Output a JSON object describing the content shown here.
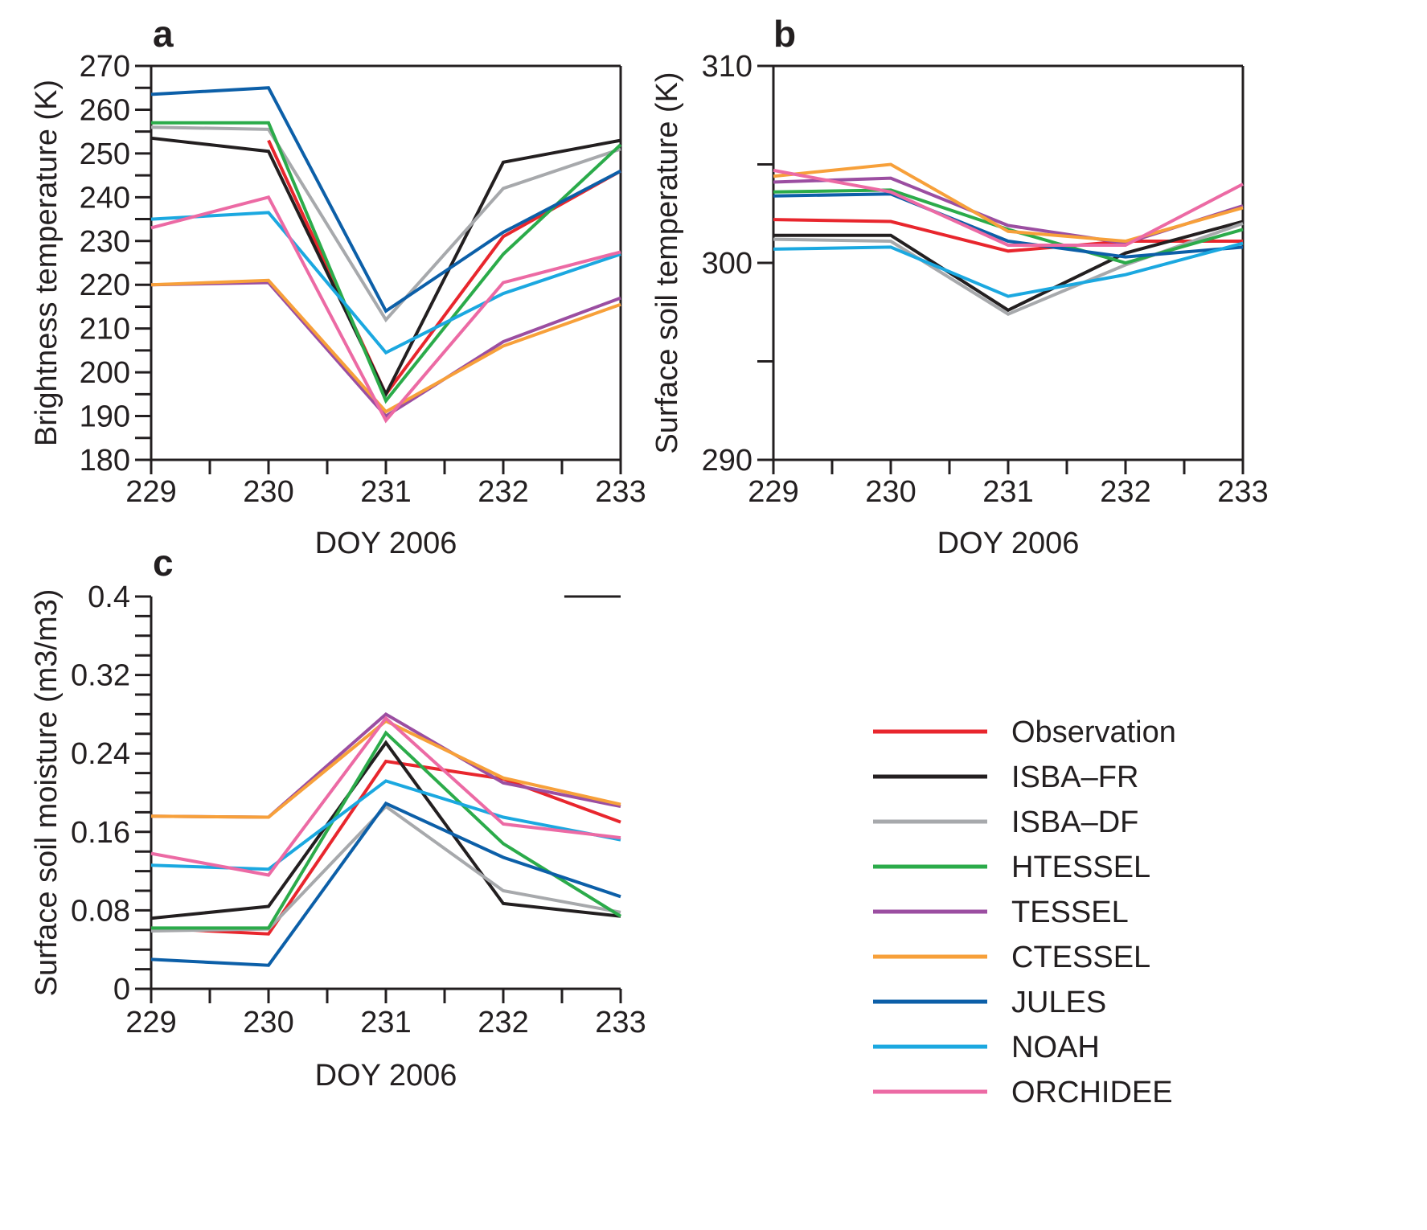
{
  "chart_data": [
    {
      "panel": "a",
      "type": "line",
      "x": [
        229,
        230,
        231,
        232,
        233
      ],
      "xlabel": "DOY 2006",
      "ylabel": "Brightness temperature (K)",
      "xlim": [
        229,
        233
      ],
      "ylim": [
        180,
        270
      ],
      "yticks": [
        180,
        190,
        200,
        210,
        220,
        230,
        240,
        250,
        260,
        270
      ],
      "ytick_step_minor": 5,
      "grid": false,
      "series": [
        {
          "name": "Observation",
          "color": "#e8262d",
          "x": [
            230,
            231,
            232,
            233
          ],
          "values": [
            253,
            195,
            231,
            246
          ]
        },
        {
          "name": "ISBA–FR",
          "color": "#231f20",
          "x": [
            229,
            230,
            231,
            232,
            233
          ],
          "values": [
            253.5,
            250.5,
            195,
            248,
            253
          ]
        },
        {
          "name": "ISBA–DF",
          "color": "#a7a9ac",
          "x": [
            229,
            230,
            231,
            232,
            233
          ],
          "values": [
            256,
            255.5,
            212,
            242,
            251
          ]
        },
        {
          "name": "HTESSEL",
          "color": "#2bab4a",
          "x": [
            229,
            230,
            231,
            232,
            233
          ],
          "values": [
            257,
            257,
            193.5,
            227,
            252
          ]
        },
        {
          "name": "TESSEL",
          "color": "#9b4ea1",
          "x": [
            229,
            230,
            231,
            232,
            233
          ],
          "values": [
            220,
            220.5,
            190,
            207,
            217
          ]
        },
        {
          "name": "CTESSEL",
          "color": "#f7a03a",
          "x": [
            229,
            230,
            231,
            232,
            233
          ],
          "values": [
            220,
            221,
            191,
            206,
            215.5
          ]
        },
        {
          "name": "JULES",
          "color": "#0c5fa8",
          "x": [
            229,
            230,
            231,
            232,
            233
          ],
          "values": [
            263.5,
            265,
            214,
            232,
            246
          ]
        },
        {
          "name": "NOAH",
          "color": "#1ba8e0",
          "x": [
            229,
            230,
            231,
            232,
            233
          ],
          "values": [
            235,
            236.5,
            204.5,
            218,
            227
          ]
        },
        {
          "name": "ORCHIDEE",
          "color": "#ec6aa4",
          "x": [
            229,
            230,
            231,
            232,
            233
          ],
          "values": [
            233,
            240,
            189,
            220.5,
            227.5
          ]
        }
      ]
    },
    {
      "panel": "b",
      "type": "line",
      "x": [
        229,
        230,
        231,
        232,
        233
      ],
      "xlabel": "DOY 2006",
      "ylabel": "Surface soil temperature (K)",
      "xlim": [
        229,
        233
      ],
      "ylim": [
        290,
        310
      ],
      "yticks": [
        290,
        300,
        310
      ],
      "ytick_step_minor": 5,
      "grid": false,
      "series": [
        {
          "name": "Observation",
          "color": "#e8262d",
          "x": [
            229,
            230,
            231,
            232,
            233
          ],
          "values": [
            302.2,
            302.1,
            300.6,
            301.1,
            301.1
          ]
        },
        {
          "name": "ISBA–FR",
          "color": "#231f20",
          "x": [
            229,
            230,
            231,
            232,
            233
          ],
          "values": [
            301.4,
            301.4,
            297.6,
            300.5,
            302.1
          ]
        },
        {
          "name": "ISBA–DF",
          "color": "#a7a9ac",
          "x": [
            229,
            230,
            231,
            232,
            233
          ],
          "values": [
            301.2,
            301.1,
            297.4,
            299.9,
            302.0
          ]
        },
        {
          "name": "HTESSEL",
          "color": "#2bab4a",
          "x": [
            229,
            230,
            231,
            232,
            233
          ],
          "values": [
            303.6,
            303.7,
            301.7,
            300.0,
            301.7
          ]
        },
        {
          "name": "TESSEL",
          "color": "#9b4ea1",
          "x": [
            229,
            230,
            231,
            232,
            233
          ],
          "values": [
            304.1,
            304.3,
            301.9,
            301.0,
            302.9
          ]
        },
        {
          "name": "CTESSEL",
          "color": "#f7a03a",
          "x": [
            229,
            230,
            231,
            232,
            233
          ],
          "values": [
            304.4,
            305.0,
            301.6,
            301.1,
            302.8
          ]
        },
        {
          "name": "JULES",
          "color": "#0c5fa8",
          "x": [
            229,
            230,
            231,
            232,
            233
          ],
          "values": [
            303.4,
            303.5,
            301.1,
            300.3,
            300.8
          ]
        },
        {
          "name": "NOAH",
          "color": "#1ba8e0",
          "x": [
            229,
            230,
            231,
            232,
            233
          ],
          "values": [
            300.7,
            300.8,
            298.3,
            299.4,
            301.0
          ]
        },
        {
          "name": "ORCHIDEE",
          "color": "#ec6aa4",
          "x": [
            229,
            230,
            231,
            232,
            233
          ],
          "values": [
            304.7,
            303.6,
            300.9,
            300.9,
            304.0
          ]
        }
      ]
    },
    {
      "panel": "c",
      "type": "line",
      "x": [
        229,
        230,
        231,
        232,
        233
      ],
      "xlabel": "DOY 2006",
      "ylabel": "Surface soil moisture (m3/m3)",
      "xlim": [
        229,
        233
      ],
      "ylim": [
        0,
        0.4
      ],
      "yticks": [
        0,
        0.08,
        0.16,
        0.24,
        0.32,
        0.4
      ],
      "ytick_labels": [
        "0",
        "0.08",
        "0.16",
        "0.24",
        "0.32",
        "0.4"
      ],
      "ytick_step_minor": 0.02,
      "grid": false,
      "series": [
        {
          "name": "Observation",
          "color": "#e8262d",
          "x": [
            229,
            230,
            231,
            232,
            233
          ],
          "values": [
            0.062,
            0.056,
            0.232,
            0.214,
            0.17
          ]
        },
        {
          "name": "ISBA–FR",
          "color": "#231f20",
          "x": [
            229,
            230,
            231,
            232,
            233
          ],
          "values": [
            0.072,
            0.084,
            0.251,
            0.087,
            0.074
          ]
        },
        {
          "name": "ISBA–DF",
          "color": "#a7a9ac",
          "x": [
            229,
            230,
            231,
            232,
            233
          ],
          "values": [
            0.059,
            0.061,
            0.186,
            0.1,
            0.078
          ]
        },
        {
          "name": "HTESSEL",
          "color": "#2bab4a",
          "x": [
            229,
            230,
            231,
            232,
            233
          ],
          "values": [
            0.062,
            0.062,
            0.261,
            0.148,
            0.074
          ]
        },
        {
          "name": "TESSEL",
          "color": "#9b4ea1",
          "x": [
            229,
            230,
            231,
            232,
            233
          ],
          "values": [
            0.176,
            0.175,
            0.28,
            0.21,
            0.186
          ]
        },
        {
          "name": "CTESSEL",
          "color": "#f7a03a",
          "x": [
            229,
            230,
            231,
            232,
            233
          ],
          "values": [
            0.176,
            0.175,
            0.273,
            0.215,
            0.188
          ]
        },
        {
          "name": "JULES",
          "color": "#0c5fa8",
          "x": [
            229,
            230,
            231,
            232,
            233
          ],
          "values": [
            0.03,
            0.024,
            0.189,
            0.134,
            0.094
          ]
        },
        {
          "name": "NOAH",
          "color": "#1ba8e0",
          "x": [
            229,
            230,
            231,
            232,
            233
          ],
          "values": [
            0.126,
            0.122,
            0.212,
            0.175,
            0.152
          ]
        },
        {
          "name": "ORCHIDEE",
          "color": "#ec6aa4",
          "x": [
            229,
            230,
            231,
            232,
            233
          ],
          "values": [
            0.138,
            0.116,
            0.276,
            0.168,
            0.154
          ]
        }
      ]
    }
  ],
  "legend": {
    "placement": "bottom-right",
    "entries": [
      {
        "label": "Observation",
        "color": "#e8262d"
      },
      {
        "label": "ISBA–FR",
        "color": "#231f20"
      },
      {
        "label": "ISBA–DF",
        "color": "#a7a9ac"
      },
      {
        "label": "HTESSEL",
        "color": "#2bab4a"
      },
      {
        "label": "TESSEL",
        "color": "#9b4ea1"
      },
      {
        "label": "CTESSEL",
        "color": "#f7a03a"
      },
      {
        "label": "JULES",
        "color": "#0c5fa8"
      },
      {
        "label": "NOAH",
        "color": "#1ba8e0"
      },
      {
        "label": "ORCHIDEE",
        "color": "#ec6aa4"
      }
    ]
  }
}
